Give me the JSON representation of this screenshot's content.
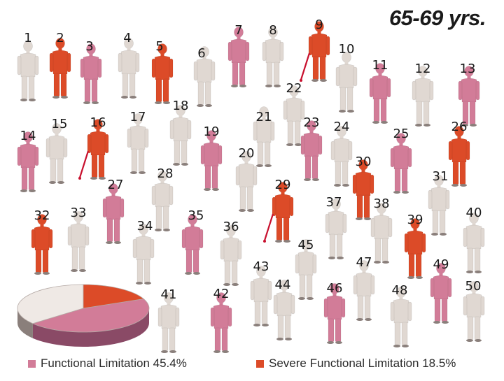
{
  "title": "65-69 yrs.",
  "colors": {
    "none": "#e0d8d2",
    "limitation": "#d27c98",
    "severe": "#dc4b28",
    "pie_none_top": "#efe9e5",
    "pie_none_side": "#8a7f7b",
    "pie_lim_side": "#8a4a66",
    "pie_sev_side": "#a33a20"
  },
  "legend": [
    {
      "label": "Functional Limitation 45.4%",
      "color": "#d27c98"
    },
    {
      "label": "Severe Functional Limitation 18.5%",
      "color": "#dc4b28"
    }
  ],
  "people": [
    {
      "n": "1",
      "status": "none"
    },
    {
      "n": "2",
      "status": "severe"
    },
    {
      "n": "3",
      "status": "limitation"
    },
    {
      "n": "4",
      "status": "none"
    },
    {
      "n": "5",
      "status": "severe"
    },
    {
      "n": "6",
      "status": "none"
    },
    {
      "n": "7",
      "status": "limitation"
    },
    {
      "n": "8",
      "status": "none"
    },
    {
      "n": "9",
      "status": "severe",
      "cane": true
    },
    {
      "n": "10",
      "status": "none"
    },
    {
      "n": "11",
      "status": "limitation"
    },
    {
      "n": "12",
      "status": "none"
    },
    {
      "n": "13",
      "status": "limitation"
    },
    {
      "n": "14",
      "status": "limitation"
    },
    {
      "n": "15",
      "status": "none"
    },
    {
      "n": "16",
      "status": "severe",
      "cane": true
    },
    {
      "n": "17",
      "status": "none"
    },
    {
      "n": "18",
      "status": "none"
    },
    {
      "n": "19",
      "status": "limitation"
    },
    {
      "n": "20",
      "status": "none"
    },
    {
      "n": "21",
      "status": "none"
    },
    {
      "n": "22",
      "status": "none"
    },
    {
      "n": "23",
      "status": "limitation"
    },
    {
      "n": "24",
      "status": "none"
    },
    {
      "n": "25",
      "status": "limitation"
    },
    {
      "n": "26",
      "status": "severe"
    },
    {
      "n": "27",
      "status": "limitation"
    },
    {
      "n": "28",
      "status": "none"
    },
    {
      "n": "29",
      "status": "severe",
      "cane": true
    },
    {
      "n": "30",
      "status": "severe"
    },
    {
      "n": "31",
      "status": "none"
    },
    {
      "n": "32",
      "status": "severe"
    },
    {
      "n": "33",
      "status": "none"
    },
    {
      "n": "34",
      "status": "none"
    },
    {
      "n": "35",
      "status": "limitation"
    },
    {
      "n": "36",
      "status": "none"
    },
    {
      "n": "37",
      "status": "none"
    },
    {
      "n": "38",
      "status": "none"
    },
    {
      "n": "39",
      "status": "severe"
    },
    {
      "n": "40",
      "status": "none"
    },
    {
      "n": "41",
      "status": "none"
    },
    {
      "n": "42",
      "status": "limitation"
    },
    {
      "n": "43",
      "status": "none"
    },
    {
      "n": "44",
      "status": "none"
    },
    {
      "n": "45",
      "status": "none"
    },
    {
      "n": "46",
      "status": "limitation"
    },
    {
      "n": "47",
      "status": "none"
    },
    {
      "n": "48",
      "status": "none"
    },
    {
      "n": "49",
      "status": "limitation"
    },
    {
      "n": "50",
      "status": "none"
    }
  ],
  "chart_data": {
    "type": "pie",
    "title": "65-69 yrs.",
    "slices": [
      {
        "label": "Functional Limitation",
        "value": 45.4,
        "color": "#d27c98"
      },
      {
        "label": "Severe Functional Limitation",
        "value": 18.5,
        "color": "#dc4b28"
      }
    ]
  }
}
